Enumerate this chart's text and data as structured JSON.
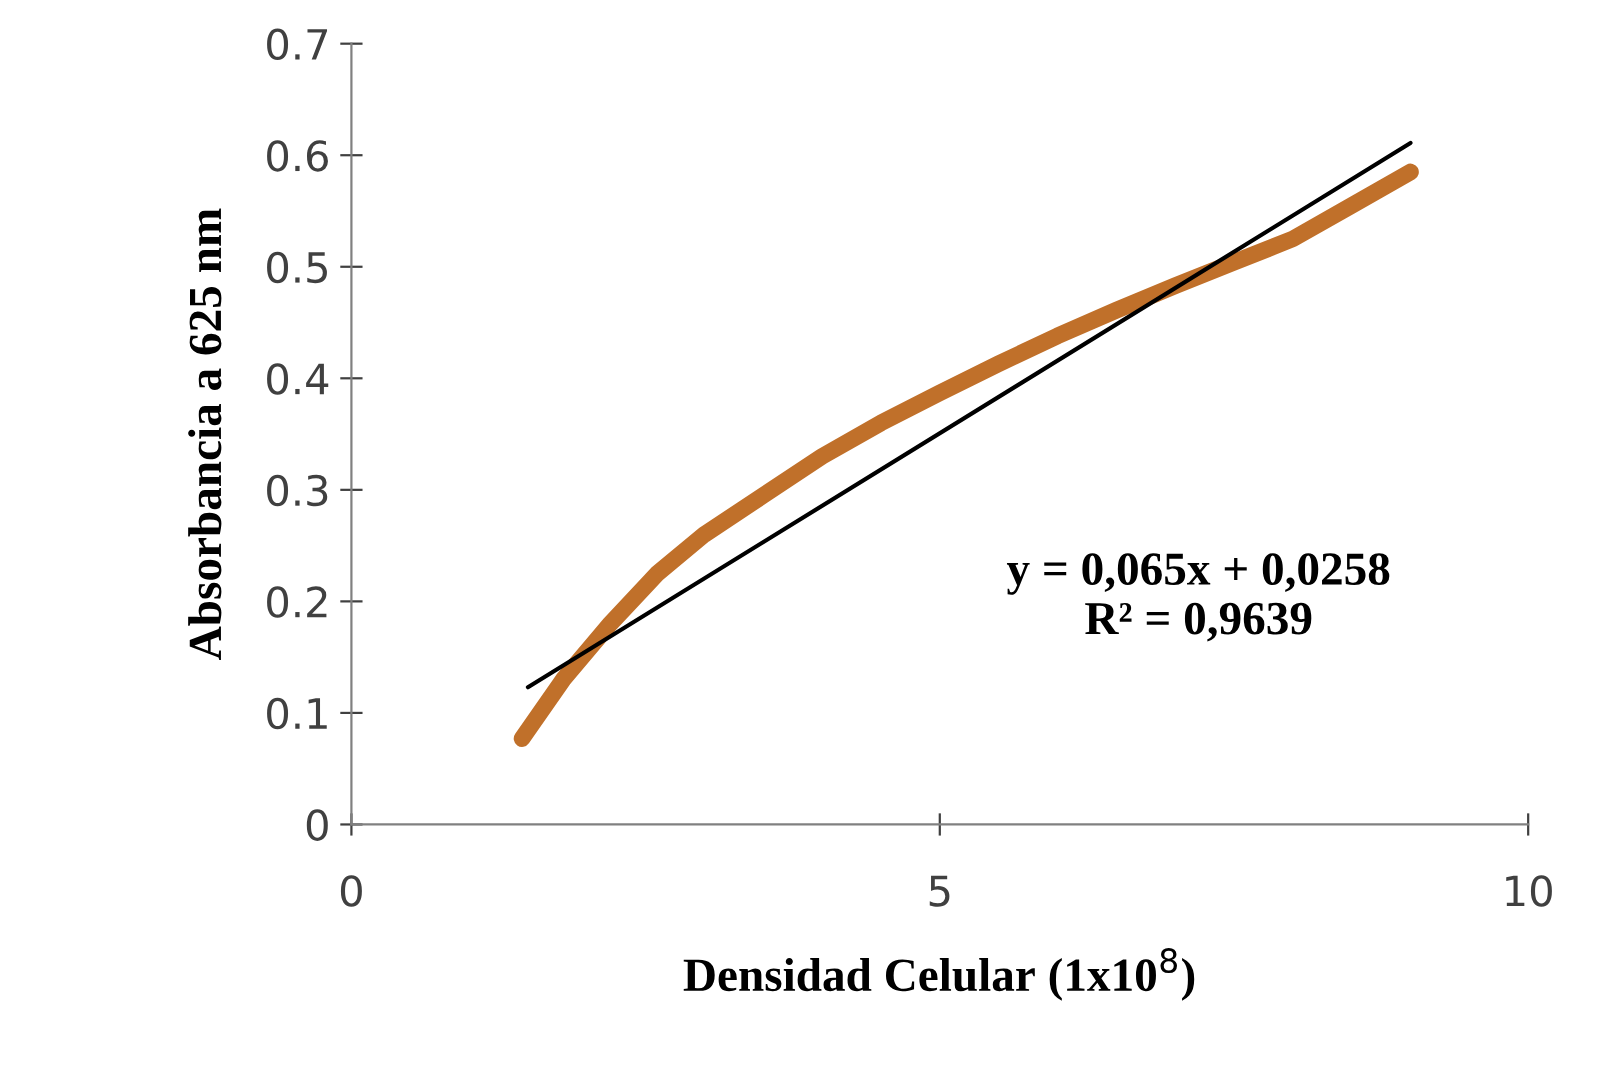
{
  "chart_data": {
    "type": "line",
    "xlabel": "Densidad Celular (1x10$^{8}$)",
    "ylabel": "Absorbancia a 625 nm",
    "series": [
      {
        "color": "#c0702a",
        "x": [
          1.45,
          1.8,
          2.2,
          2.6,
          3.0,
          3.5,
          4.0,
          4.5,
          5.0,
          5.5,
          6.0,
          6.5,
          7.0,
          7.5,
          8.0,
          8.5,
          9.0
        ],
        "values": [
          0.077,
          0.13,
          0.18,
          0.225,
          0.26,
          0.295,
          0.33,
          0.36,
          0.387,
          0.413,
          0.438,
          0.461,
          0.483,
          0.504,
          0.525,
          0.555,
          0.585
        ]
      },
      {
        "color": "#000000",
        "x": [
          1.5,
          9.0
        ],
        "values": [
          0.123,
          0.611
        ]
      }
    ],
    "annotations": [
      "y = 0,065x + 0,0258\nR² = 0,9639"
    ],
    "xlim": [
      0,
      10
    ],
    "xticks": [
      0,
      5,
      10
    ],
    "ylim": [
      0,
      0.7
    ],
    "yticks": [
      {
        "value": 0,
        "label": "0"
      },
      0.1,
      0.2,
      0.3,
      0.4,
      0.5,
      0.6,
      0.7
    ],
    "grid": false,
    "legend": false,
    "marker": "none",
    "line_style": "solid"
  }
}
